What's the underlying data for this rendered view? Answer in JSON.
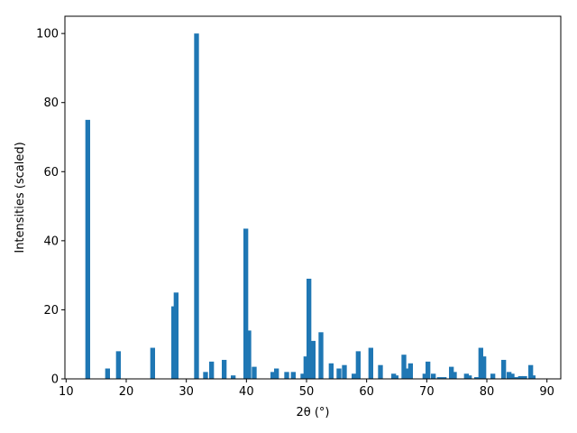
{
  "chart_data": {
    "type": "bar",
    "xlabel": "2θ (°)",
    "ylabel": "Intensities (scaled)",
    "xlim": [
      9.8,
      92.3
    ],
    "ylim": [
      0,
      105
    ],
    "xticks": [
      10,
      20,
      30,
      40,
      50,
      60,
      70,
      80,
      90
    ],
    "yticks": [
      0,
      20,
      40,
      60,
      80,
      100
    ],
    "bar_width": 0.8,
    "color": "#1f77b4",
    "grid": false,
    "series": [
      {
        "x": [
          13.6,
          16.9,
          18.7,
          24.4,
          27.9,
          28.3,
          31.7,
          33.2,
          34.2,
          36.3,
          37.8,
          39.9,
          40.4,
          41.3,
          44.4,
          45.0,
          46.7,
          47.8,
          49.4,
          49.9,
          50.4,
          51.1,
          52.4,
          54.1,
          55.4,
          56.3,
          57.9,
          58.6,
          60.7,
          62.3,
          64.5,
          64.9,
          66.2,
          66.7,
          67.3,
          69.7,
          70.2,
          71.1,
          72.1,
          72.9,
          74.1,
          74.6,
          76.6,
          77.1,
          78.3,
          79.0,
          79.5,
          81.0,
          82.8,
          83.7,
          84.2,
          84.9,
          85.6,
          86.3,
          87.3,
          87.7
        ],
        "values": [
          75,
          3,
          8,
          9,
          21,
          25,
          100,
          2,
          5,
          5.5,
          1,
          43.5,
          14,
          3.5,
          2,
          3,
          2,
          2,
          1.5,
          6.5,
          29,
          11,
          13.5,
          4.5,
          3,
          4,
          1.5,
          8,
          9,
          4,
          1.5,
          1,
          7,
          3,
          4.5,
          1.5,
          5,
          1.5,
          0.5,
          0.5,
          3.5,
          2,
          1.5,
          1,
          0.5,
          9,
          6.5,
          1.5,
          5.5,
          2,
          1.5,
          0.5,
          0.8,
          0.8,
          4,
          1
        ]
      }
    ]
  }
}
